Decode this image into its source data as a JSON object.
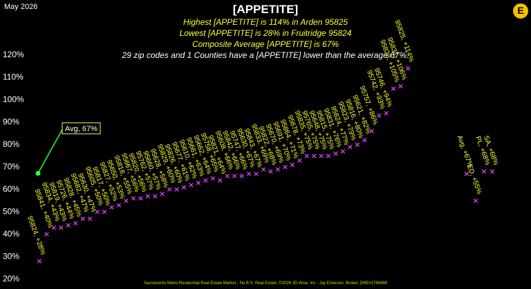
{
  "header": {
    "date": "May 2026",
    "title": "[APPETITE]",
    "line1": "Highest [APPETITE] is 114% in Arden 95825",
    "line2": "Lowest [APPETITE] is 28% in Fruitridge 95824",
    "line3": "Composite Average [APPETITE] is 67%",
    "line4": "29 zip codes and 1 Counties have a [APPETITE] lower than the average 67%."
  },
  "footer": "Sacramento Metro Residential Real Estate Market - No B.S. Real Estate, ©2026 JD Wise, Inc - Jay Emerson, Broker, DRE#1788488",
  "logo": "E",
  "colors": {
    "background": "#000000",
    "marker": "#e040ff",
    "label": "#ffff33",
    "avg": "#33ff33"
  },
  "chart_data": {
    "type": "scatter",
    "ylim": [
      20,
      125
    ],
    "ytick_labels": [
      "20%",
      "30%",
      "40%",
      "50%",
      "60%",
      "70%",
      "80%",
      "90%",
      "100%",
      "110%",
      "120%"
    ],
    "grid": false,
    "average": {
      "value": 67,
      "label": "Avg, 67%"
    },
    "points": [
      {
        "label": "95824, +28%",
        "value": 28
      },
      {
        "label": "95841, +40%",
        "value": 40
      },
      {
        "label": "95834, +43%",
        "value": 43
      },
      {
        "label": "95819, +43%",
        "value": 43
      },
      {
        "label": "95726, +44%",
        "value": 44
      },
      {
        "label": "95828, +45%",
        "value": 45
      },
      {
        "label": "95682, +47%",
        "value": 47
      },
      {
        "label": "95630, +47%",
        "value": 47
      },
      {
        "label": "95605, +50%",
        "value": 50
      },
      {
        "label": "95817, +50%",
        "value": 50
      },
      {
        "label": "95827, +52%",
        "value": 52
      },
      {
        "label": "95650, +53%",
        "value": 53
      },
      {
        "label": "95818, +55%",
        "value": 55
      },
      {
        "label": "95667, +56%",
        "value": 56
      },
      {
        "label": "95820, +56%",
        "value": 56
      },
      {
        "label": "95762, +57%",
        "value": 57
      },
      {
        "label": "95660, +57%",
        "value": 57
      },
      {
        "label": "95628, +58%",
        "value": 58
      },
      {
        "label": "95829, +60%",
        "value": 60
      },
      {
        "label": "95826, +60%",
        "value": 60
      },
      {
        "label": "95677, +61%",
        "value": 61
      },
      {
        "label": "95610, +62%",
        "value": 62
      },
      {
        "label": "95661, +63%",
        "value": 63
      },
      {
        "label": "95662, +64%",
        "value": 64
      },
      {
        "label": "95758, +65%",
        "value": 65
      },
      {
        "label": "95821, +64%",
        "value": 64
      },
      {
        "label": "95608, +66%",
        "value": 66
      },
      {
        "label": "95842, +66%",
        "value": 66
      },
      {
        "label": "95747, +66%",
        "value": 66
      },
      {
        "label": "95630, +67%",
        "value": 67
      },
      {
        "label": "95843, +67%",
        "value": 67
      },
      {
        "label": "95833, +69%",
        "value": 69
      },
      {
        "label": "95822, +68%",
        "value": 68
      },
      {
        "label": "95670, +69%",
        "value": 69
      },
      {
        "label": "95691, +70%",
        "value": 70
      },
      {
        "label": "95864, +71%",
        "value": 71
      },
      {
        "label": "95678, +73%",
        "value": 73
      },
      {
        "label": "95835, +75%",
        "value": 75
      },
      {
        "label": "95765, +75%",
        "value": 75
      },
      {
        "label": "95648, +75%",
        "value": 75
      },
      {
        "label": "95815, +75%",
        "value": 75
      },
      {
        "label": "95831, +76%",
        "value": 76
      },
      {
        "label": "95624, +77%",
        "value": 77
      },
      {
        "label": "95823, +79%",
        "value": 79
      },
      {
        "label": "95816, +80%",
        "value": 80
      },
      {
        "label": "95621, +82%",
        "value": 82
      },
      {
        "label": "95757, +86%",
        "value": 86
      },
      {
        "label": "95742, +93%",
        "value": 93
      },
      {
        "label": "95746, +94%",
        "value": 94
      },
      {
        "label": "95838, +105%",
        "value": 105
      },
      {
        "label": "95831, +106%",
        "value": 106
      },
      {
        "label": "95825, +114%",
        "value": 114
      }
    ],
    "county_points": [
      {
        "label": "Avg, +67%",
        "value": 67
      },
      {
        "label": "ED, +55%",
        "value": 55
      },
      {
        "label": "PL, +68%",
        "value": 68
      },
      {
        "label": "SA, +68%",
        "value": 68
      }
    ]
  }
}
